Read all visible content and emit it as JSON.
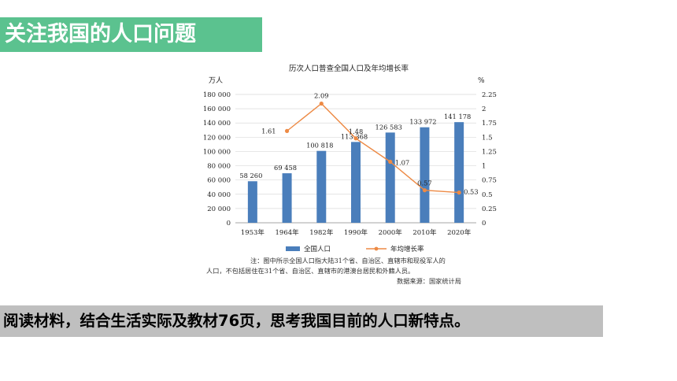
{
  "header": {
    "title": "关注我国的人口问题"
  },
  "task": {
    "text": "阅读材料，结合生活实际及教材76页，思考我国目前的人口新特点。"
  },
  "note": {
    "line1": "注：图中所示全国人口指大陆31个省、自治区、直辖市和现役军人的",
    "line2": "人口，不包括居住在31个省、自治区、直辖市的港澳台居民和外籍人员。",
    "source": "数据来源：国家统计局"
  },
  "colors": {
    "bar": "#4a7ebb",
    "line": "#ed8a45",
    "banner_green": "#5bc28f",
    "banner_gray": "#bfbfbf"
  },
  "chart_data": {
    "type": "bar",
    "title": "历次人口普查全国人口及年均增长率",
    "categories": [
      "1953年",
      "1964年",
      "1982年",
      "1990年",
      "2000年",
      "2010年",
      "2020年"
    ],
    "series": [
      {
        "name": "全国人口",
        "type": "bar",
        "axis": "left",
        "values": [
          58260,
          69458,
          100818,
          113368,
          126583,
          133972,
          141178
        ],
        "labels": [
          "58 260",
          "69 458",
          "100 818",
          "113 368",
          "126 583",
          "133 972",
          "141 178"
        ]
      },
      {
        "name": "年均增长率",
        "type": "line",
        "axis": "right",
        "values": [
          null,
          1.61,
          2.09,
          1.48,
          1.07,
          0.57,
          0.53
        ],
        "labels": [
          "",
          "1.61",
          "2.09",
          "1.48",
          "1.07",
          "0.57",
          "0.53"
        ]
      }
    ],
    "y_left": {
      "unit": "万人",
      "range": [
        0,
        180000
      ],
      "ticks": [
        "0",
        "20 000",
        "40 000",
        "60 000",
        "80 000",
        "100 000",
        "120 000",
        "140 000",
        "160 000",
        "180 000"
      ]
    },
    "y_right": {
      "unit": "%",
      "range": [
        0,
        2.25
      ],
      "ticks": [
        "0",
        "0.25",
        "0.5",
        "0.75",
        "1",
        "1.25",
        "1.5",
        "1.75",
        "2",
        "2.25"
      ]
    },
    "grid": true,
    "legend": "bottom"
  }
}
